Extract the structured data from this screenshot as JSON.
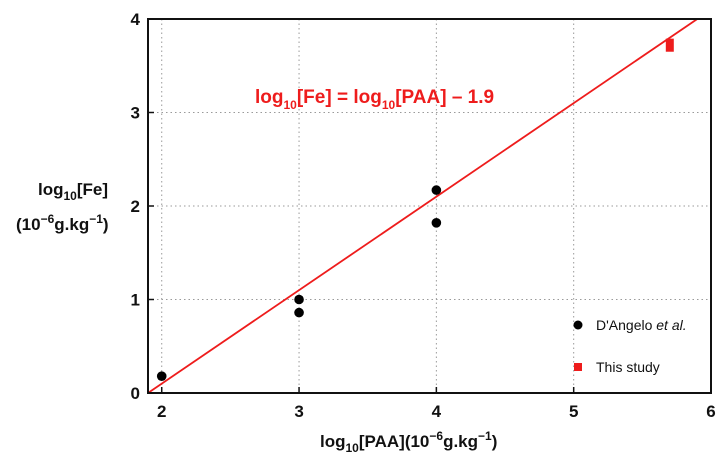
{
  "chart_data": {
    "type": "scatter",
    "xlabel": "log10[PAA](10-6g.kg-1)",
    "ylabel": "log10[Fe] (10-6g.kg-1)",
    "xlim": [
      1.9,
      6
    ],
    "ylim": [
      0,
      4
    ],
    "x_ticks": [
      "2",
      "3",
      "4",
      "5",
      "6"
    ],
    "y_ticks": [
      "0",
      "1",
      "2",
      "3",
      "4"
    ],
    "grid": true,
    "grid_style": "dotted",
    "legend_position": "bottom-right",
    "series": [
      {
        "name": "D'Angelo et al.",
        "marker": "circle",
        "color": "#000000",
        "points": [
          [
            2.0,
            0.18
          ],
          [
            3.0,
            1.0
          ],
          [
            3.0,
            0.86
          ],
          [
            4.0,
            2.17
          ],
          [
            4.0,
            1.82
          ]
        ]
      },
      {
        "name": "This study",
        "marker": "square",
        "color": "#ee1c1c",
        "points": [
          [
            5.7,
            3.72
          ]
        ],
        "error_y": [
          0.07
        ]
      }
    ],
    "fit_line": {
      "slope": 1,
      "intercept": -1.9,
      "x_range": [
        1.9,
        6
      ],
      "color": "#ee1c1c",
      "label": {
        "fe_log": "log",
        "fe_base": "10",
        "fe_bracket": "[Fe] = ",
        "paa_log": "log",
        "paa_base": "10",
        "paa_rest": "[PAA] – 1.9"
      }
    }
  },
  "labels": {
    "x_axis": {
      "log": "log",
      "base": "10",
      "mid": "[PAA](10",
      "exp": "−6",
      "unit": "g.kg",
      "unit_exp": "−1",
      "close": ")"
    },
    "y_axis_line1": {
      "log": "log",
      "base": "10",
      "rest": "[Fe]"
    },
    "y_axis_line2": {
      "open": "(10",
      "exp": "−6",
      "unit": "g.kg",
      "unit_exp": "−1",
      "close": ")"
    },
    "legend_dangelo_prefix": "D'Angelo ",
    "legend_dangelo_italic": "et al.",
    "legend_this_study": "This study"
  }
}
